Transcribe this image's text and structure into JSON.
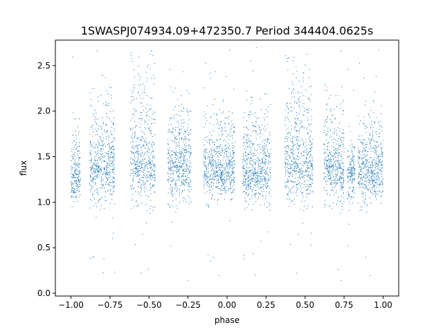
{
  "chart_data": {
    "type": "scatter",
    "title": "1SWASPJ074934.09+472350.7 Period 344404.0625s",
    "xlabel": "phase",
    "ylabel": "flux",
    "xlim": [
      -1.1,
      1.1
    ],
    "ylim": [
      -0.03,
      2.78
    ],
    "xticks": [
      -1.0,
      -0.75,
      -0.5,
      -0.25,
      0.0,
      0.25,
      0.5,
      0.75,
      1.0
    ],
    "xtick_labels": [
      "−1.00",
      "−0.75",
      "−0.50",
      "−0.25",
      "0.00",
      "0.25",
      "0.50",
      "0.75",
      "1.00"
    ],
    "yticks": [
      0.0,
      0.5,
      1.0,
      1.5,
      2.0,
      2.5
    ],
    "ytick_labels": [
      "0.0",
      "0.5",
      "1.0",
      "1.5",
      "2.0",
      "2.5"
    ],
    "grid": false,
    "legend": "none",
    "marker_color": "#1f77b4",
    "series": [
      {
        "clusters": [
          {
            "x": [
              -1.0,
              -0.94
            ],
            "y_median": 1.3,
            "y_core": [
              1.0,
              1.7
            ]
          },
          {
            "x": [
              -0.88,
              -0.72
            ],
            "y_median": 1.4,
            "y_core": [
              1.0,
              2.0
            ]
          },
          {
            "x": [
              -0.62,
              -0.46
            ],
            "y_median": 1.45,
            "y_core": [
              1.0,
              2.35
            ]
          },
          {
            "x": [
              -0.38,
              -0.23
            ],
            "y_median": 1.4,
            "y_core": [
              1.0,
              2.0
            ]
          },
          {
            "x": [
              -0.15,
              0.05
            ],
            "y_median": 1.35,
            "y_core": [
              1.05,
              1.85
            ]
          },
          {
            "x": [
              0.1,
              0.28
            ],
            "y_median": 1.35,
            "y_core": [
              1.0,
              1.9
            ]
          },
          {
            "x": [
              0.37,
              0.55
            ],
            "y_median": 1.45,
            "y_core": [
              1.0,
              2.35
            ]
          },
          {
            "x": [
              0.62,
              0.75
            ],
            "y_median": 1.4,
            "y_core": [
              1.0,
              2.0
            ]
          },
          {
            "x": [
              0.77,
              0.82
            ],
            "y_median": 1.3,
            "y_core": [
              0.95,
              1.6
            ]
          },
          {
            "x": [
              0.84,
              1.0
            ],
            "y_median": 1.35,
            "y_core": [
              1.0,
              1.85
            ]
          }
        ],
        "y_outlier_range": [
          0.1,
          2.7
        ]
      }
    ]
  }
}
